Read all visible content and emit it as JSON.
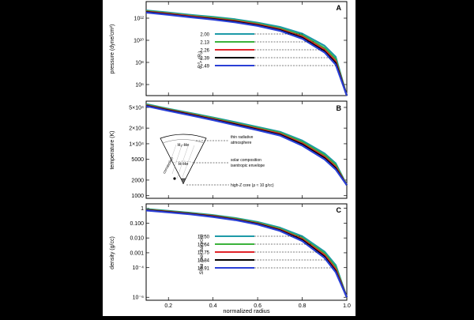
{
  "figure": {
    "x_label": "normalized radius",
    "x_ticks": [
      "0.2",
      "0.4",
      "0.6",
      "0.8",
      "1.0"
    ]
  },
  "chart_data": [
    {
      "type": "line",
      "panel_letter": "A",
      "ylabel": "pressure (dyne/cm²)",
      "xlim": [
        0.1,
        1.0
      ],
      "ylim_log10": [
        5,
        13.5
      ],
      "y_ticks": [
        {
          "value": 1000000000000.0,
          "label": "10¹²"
        },
        {
          "value": 10000000000.0,
          "label": "10¹⁰"
        },
        {
          "value": 100000000.0,
          "label": "10⁸"
        },
        {
          "value": 1000000.0,
          "label": "10⁶"
        }
      ],
      "legend_title": "R⁰ₚ (Rⱼ)",
      "series": [
        {
          "name": "2.00",
          "color": "#1d9aa8",
          "x": [
            0.1,
            0.2,
            0.3,
            0.4,
            0.5,
            0.6,
            0.7,
            0.8,
            0.9,
            0.95,
            1.0
          ],
          "y": [
            5000000000000.0,
            3200000000000.0,
            2000000000000.0,
            1300000000000.0,
            790000000000.0,
            390000000000.0,
            160000000000.0,
            40000000000.0,
            3200000000.0,
            320000000.0,
            100000.0
          ]
        },
        {
          "name": "2.13",
          "color": "#3bb23b",
          "x": [
            0.1,
            0.2,
            0.3,
            0.4,
            0.5,
            0.6,
            0.7,
            0.8,
            0.9,
            0.95,
            1.0
          ],
          "y": [
            4500000000000.0,
            2800000000000.0,
            1700000000000.0,
            1100000000000.0,
            650000000000.0,
            320000000000.0,
            120000000000.0,
            28000000000.0,
            2000000000.0,
            200000000.0,
            100000.0
          ]
        },
        {
          "name": "2.26",
          "color": "#e0242a",
          "x": [
            0.1,
            0.2,
            0.3,
            0.4,
            0.5,
            0.6,
            0.7,
            0.8,
            0.9,
            0.95,
            1.0
          ],
          "y": [
            4000000000000.0,
            2500000000000.0,
            1500000000000.0,
            950000000000.0,
            560000000000.0,
            270000000000.0,
            100000000000.0,
            22000000000.0,
            1400000000.0,
            130000000.0,
            100000.0
          ]
        },
        {
          "name": "2.39",
          "color": "#000000",
          "x": [
            0.1,
            0.2,
            0.3,
            0.4,
            0.5,
            0.6,
            0.7,
            0.8,
            0.9,
            0.95,
            1.0
          ],
          "y": [
            3600000000000.0,
            2200000000000.0,
            1300000000000.0,
            830000000000.0,
            480000000000.0,
            230000000000.0,
            83000000000.0,
            17000000000.0,
            1000000000.0,
            90000000.0,
            100000.0
          ]
        },
        {
          "name": "2.49",
          "color": "#2a3fd6",
          "x": [
            0.1,
            0.2,
            0.3,
            0.4,
            0.5,
            0.6,
            0.7,
            0.8,
            0.9,
            0.95,
            1.0
          ],
          "y": [
            3200000000000.0,
            2000000000000.0,
            1200000000000.0,
            740000000000.0,
            420000000000.0,
            200000000000.0,
            72000000000.0,
            14000000000.0,
            790000000.0,
            63000000.0,
            100000.0
          ]
        }
      ]
    },
    {
      "type": "line",
      "panel_letter": "B",
      "ylabel": "temperature (K)",
      "xlim": [
        0.1,
        1.0
      ],
      "ylim_log10": [
        2.95,
        4.82
      ],
      "y_ticks": [
        {
          "value": 50000,
          "label": "5×10⁴"
        },
        {
          "value": 20000,
          "label": "2×10⁴"
        },
        {
          "value": 10000,
          "label": "1×10⁴"
        },
        {
          "value": 5000,
          "label": "5000"
        },
        {
          "value": 2000,
          "label": "2000"
        },
        {
          "value": 1000,
          "label": "1000"
        }
      ],
      "inset": {
        "top_label": "H₂-He",
        "middle_label": "H-He",
        "side_label": "convection",
        "annotations": [
          "thin radiative atmosphere",
          "solar composition isentropic envelope",
          "high-Z core (ρ ≈ 10 g/cc)"
        ]
      },
      "series": [
        {
          "name": "2.00",
          "color": "#1d9aa8",
          "x": [
            0.1,
            0.2,
            0.3,
            0.4,
            0.5,
            0.6,
            0.7,
            0.8,
            0.9,
            0.95,
            1.0
          ],
          "y": [
            58000,
            47000,
            39000,
            32000,
            26000,
            21000,
            17000,
            11500,
            6500,
            4200,
            1600
          ]
        },
        {
          "name": "2.13",
          "color": "#3bb23b",
          "x": [
            0.1,
            0.2,
            0.3,
            0.4,
            0.5,
            0.6,
            0.7,
            0.8,
            0.9,
            0.95,
            1.0
          ],
          "y": [
            56500,
            46000,
            38000,
            31000,
            25000,
            20200,
            16300,
            10800,
            6000,
            3900,
            1600
          ]
        },
        {
          "name": "2.26",
          "color": "#e0242a",
          "x": [
            0.1,
            0.2,
            0.3,
            0.4,
            0.5,
            0.6,
            0.7,
            0.8,
            0.9,
            0.95,
            1.0
          ],
          "y": [
            55000,
            45000,
            37000,
            30000,
            24200,
            19500,
            15600,
            10200,
            5600,
            3600,
            1600
          ]
        },
        {
          "name": "2.39",
          "color": "#000000",
          "x": [
            0.1,
            0.2,
            0.3,
            0.4,
            0.5,
            0.6,
            0.7,
            0.8,
            0.9,
            0.95,
            1.0
          ],
          "y": [
            54000,
            44000,
            36000,
            29200,
            23500,
            18800,
            15000,
            9700,
            5300,
            3400,
            1600
          ]
        },
        {
          "name": "2.49",
          "color": "#2a3fd6",
          "x": [
            0.1,
            0.2,
            0.3,
            0.4,
            0.5,
            0.6,
            0.7,
            0.8,
            0.9,
            0.95,
            1.0
          ],
          "y": [
            53000,
            43000,
            35000,
            28500,
            22800,
            18200,
            14400,
            9200,
            5000,
            3200,
            1600
          ]
        }
      ]
    },
    {
      "type": "line",
      "panel_letter": "C",
      "ylabel": "density (g/cc)",
      "xlim": [
        0.1,
        1.0
      ],
      "ylim_log10": [
        -6.2,
        0.3
      ],
      "y_ticks": [
        {
          "value": 1,
          "label": "1"
        },
        {
          "value": 0.1,
          "label": "0.100"
        },
        {
          "value": 0.01,
          "label": "0.010"
        },
        {
          "value": 0.001,
          "label": "0.001"
        },
        {
          "value": 0.0001,
          "label": "10⁻⁴"
        },
        {
          "value": 1e-06,
          "label": "10⁻⁶"
        }
      ],
      "legend_title": "Sᴵ/kʙ (per baryon)",
      "series": [
        {
          "name": "10.50",
          "color": "#1d9aa8",
          "x": [
            0.1,
            0.2,
            0.3,
            0.4,
            0.5,
            0.6,
            0.7,
            0.8,
            0.9,
            0.95,
            1.0
          ],
          "y": [
            0.9,
            0.68,
            0.5,
            0.35,
            0.22,
            0.12,
            0.05,
            0.013,
            0.0012,
            0.00015,
            1e-06
          ]
        },
        {
          "name": "10.64",
          "color": "#3bb23b",
          "x": [
            0.1,
            0.2,
            0.3,
            0.4,
            0.5,
            0.6,
            0.7,
            0.8,
            0.9,
            0.95,
            1.0
          ],
          "y": [
            0.84,
            0.63,
            0.46,
            0.32,
            0.2,
            0.105,
            0.042,
            0.01,
            0.0009,
            0.00011,
            1e-06
          ]
        },
        {
          "name": "10.75",
          "color": "#e0242a",
          "x": [
            0.1,
            0.2,
            0.3,
            0.4,
            0.5,
            0.6,
            0.7,
            0.8,
            0.9,
            0.95,
            1.0
          ],
          "y": [
            0.79,
            0.59,
            0.43,
            0.3,
            0.18,
            0.095,
            0.037,
            0.0085,
            0.0007,
            8e-05,
            1e-06
          ]
        },
        {
          "name": "10.84",
          "color": "#000000",
          "x": [
            0.1,
            0.2,
            0.3,
            0.4,
            0.5,
            0.6,
            0.7,
            0.8,
            0.9,
            0.95,
            1.0
          ],
          "y": [
            0.75,
            0.56,
            0.41,
            0.28,
            0.17,
            0.088,
            0.033,
            0.0072,
            0.00055,
            6e-05,
            1e-06
          ]
        },
        {
          "name": "10.91",
          "color": "#2a3fd6",
          "x": [
            0.1,
            0.2,
            0.3,
            0.4,
            0.5,
            0.6,
            0.7,
            0.8,
            0.9,
            0.95,
            1.0
          ],
          "y": [
            0.71,
            0.53,
            0.39,
            0.26,
            0.16,
            0.08,
            0.03,
            0.0062,
            0.00045,
            5e-05,
            1e-06
          ]
        }
      ]
    }
  ]
}
